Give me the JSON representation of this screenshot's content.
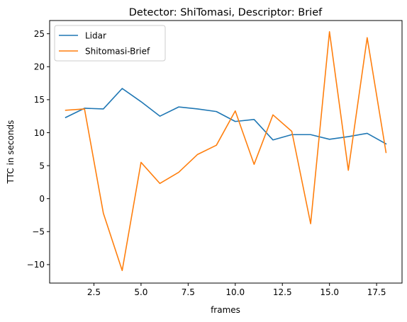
{
  "chart_data": {
    "type": "line",
    "title": "Detector: ShiTomasi, Descriptor: Brief",
    "xlabel": "frames",
    "ylabel": "TTC in seconds",
    "xlim": [
      0.15,
      18.85
    ],
    "ylim": [
      -12.8,
      27.0
    ],
    "x_ticks": [
      2.5,
      5.0,
      7.5,
      10.0,
      12.5,
      15.0,
      17.5
    ],
    "x_tick_labels": [
      "2.5",
      "5.0",
      "7.5",
      "10.0",
      "12.5",
      "15.0",
      "17.5"
    ],
    "y_ticks": [
      -10,
      -5,
      0,
      5,
      10,
      15,
      20,
      25
    ],
    "y_tick_labels": [
      "−10",
      "−5",
      "0",
      "5",
      "10",
      "15",
      "20",
      "25"
    ],
    "grid": false,
    "legend_position": "top-left",
    "x": [
      1,
      2,
      3,
      4,
      5,
      6,
      7,
      8,
      9,
      10,
      11,
      12,
      13,
      14,
      15,
      16,
      17,
      18
    ],
    "series": [
      {
        "name": "Lidar",
        "color": "#1f77b4",
        "values": [
          12.3,
          13.7,
          13.6,
          16.7,
          14.7,
          12.5,
          13.9,
          13.6,
          13.2,
          11.7,
          12.0,
          8.9,
          9.7,
          9.7,
          9.0,
          9.4,
          9.9,
          8.3
        ]
      },
      {
        "name": "Shitomasi-Brief",
        "color": "#ff7f0e",
        "values": [
          13.4,
          13.6,
          -2.2,
          -10.9,
          5.5,
          2.3,
          4.0,
          6.7,
          8.1,
          13.3,
          5.2,
          12.7,
          10.2,
          -3.8,
          25.3,
          4.3,
          24.4,
          7.0
        ]
      }
    ]
  }
}
